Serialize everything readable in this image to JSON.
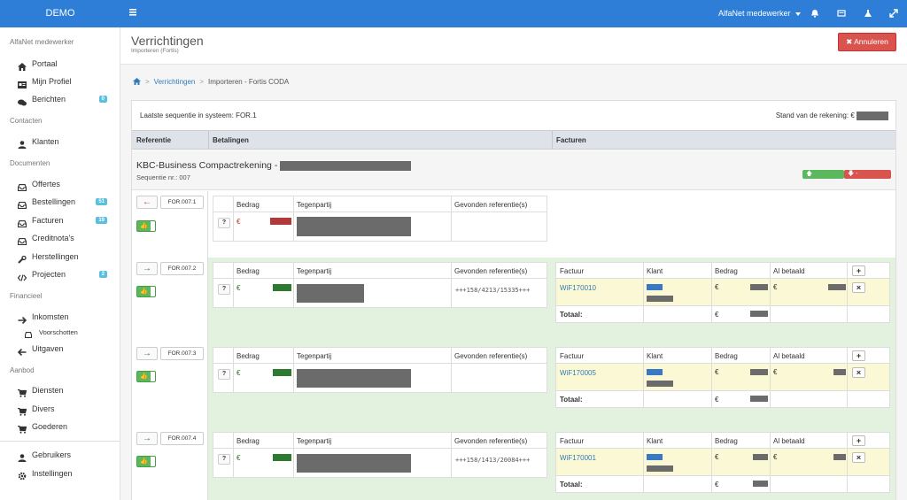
{
  "app": {
    "brand": "DEMO",
    "user": "AlfaNet medewerker"
  },
  "sidebar": {
    "sections": [
      "AlfaNet medewerker",
      "Contacten",
      "Documenten",
      "Financieel",
      "Aanbod"
    ],
    "items": [
      {
        "label": "Portaal",
        "icon": "home-icon"
      },
      {
        "label": "Mijn Profiel",
        "icon": "id-card-icon"
      },
      {
        "label": "Berichten",
        "icon": "comments-icon",
        "badge": "0"
      },
      {
        "label": "Klanten",
        "icon": "user-icon"
      },
      {
        "label": "Offertes",
        "icon": "inbox-icon"
      },
      {
        "label": "Bestellingen",
        "icon": "inbox-icon",
        "badge": "51"
      },
      {
        "label": "Facturen",
        "icon": "inbox-icon",
        "badge": "19"
      },
      {
        "label": "Creditnota's",
        "icon": "inbox-icon"
      },
      {
        "label": "Herstellingen",
        "icon": "wrench-icon"
      },
      {
        "label": "Projecten",
        "icon": "code-icon",
        "badge": "2"
      },
      {
        "label": "Inkomsten",
        "icon": "arrow-right-icon"
      },
      {
        "label": "Voorschotten",
        "icon": "inbox-icon"
      },
      {
        "label": "Uitgaven",
        "icon": "arrow-left-icon"
      },
      {
        "label": "Diensten",
        "icon": "cart-icon"
      },
      {
        "label": "Divers",
        "icon": "cart-icon"
      },
      {
        "label": "Goederen",
        "icon": "cart-icon"
      },
      {
        "label": "Gebruikers",
        "icon": "user-icon"
      },
      {
        "label": "Instellingen",
        "icon": "gear-icon"
      }
    ]
  },
  "page": {
    "title": "Verrichtingen",
    "subtitle": "Importeren (Fortis)",
    "cancel": "Annuleren"
  },
  "breadcrumb": {
    "link": "Verrichtingen",
    "current": "Importeren - Fortis CODA"
  },
  "panel": {
    "sequence": "Laatste sequentie in systeem: FOR.1",
    "stand": "Stand van de rekening: €",
    "headers": [
      "Referentie",
      "Betalingen",
      "Facturen"
    ],
    "account": "KBC-Business Compactrekening -",
    "seq": "Sequentie nr.: 007"
  },
  "cols": {
    "bedrag": "Bedrag",
    "tegenpartij": "Tegenpartij",
    "gevonden": "Gevonden referentie(s)",
    "factuur": "Factuur",
    "klant": "Klant",
    "albetaald": "Al betaald",
    "totaal": "Totaal:",
    "euro": "€"
  },
  "rows": [
    {
      "ref": "FOR.007.1",
      "dir": "out",
      "gevonden": "",
      "invoice": ""
    },
    {
      "ref": "FOR.007.2",
      "dir": "in",
      "gevonden": "+++158/4213/15335+++",
      "invoice": "WiF170010"
    },
    {
      "ref": "FOR.007.3",
      "dir": "in",
      "gevonden": "",
      "invoice": "WiF170005"
    },
    {
      "ref": "FOR.007.4",
      "dir": "in",
      "gevonden": "+++158/1413/20084+++",
      "invoice": "WiF170001"
    }
  ],
  "colors": {
    "accent": "#2e7ed8",
    "danger": "#d9534f",
    "success": "#5cb85c",
    "matched": "#e3f1df",
    "invoice": "#fbf8d5"
  }
}
